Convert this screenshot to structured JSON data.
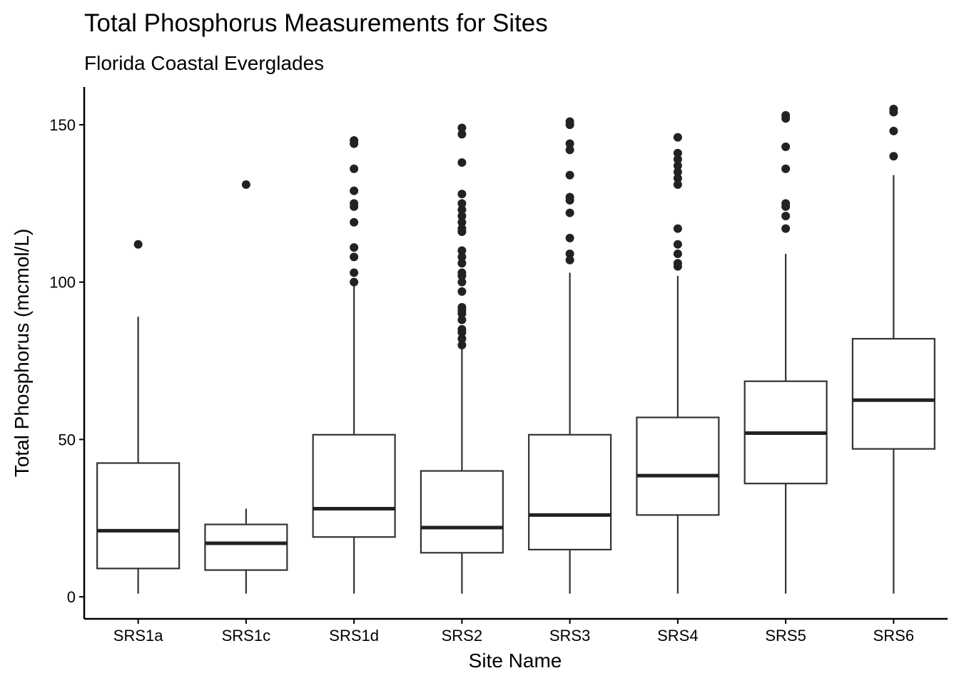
{
  "chart_data": {
    "type": "boxplot",
    "title": "Total Phosphorus Measurements for Sites",
    "subtitle": "Florida Coastal Everglades",
    "xlabel": "Site Name",
    "ylabel": "Total Phosphorus (mcmol/L)",
    "ylim": [
      -7,
      162
    ],
    "yticks": [
      0,
      50,
      100,
      150
    ],
    "grid": false,
    "categories": [
      "SRS1a",
      "SRS1c",
      "SRS1d",
      "SRS2",
      "SRS3",
      "SRS4",
      "SRS5",
      "SRS6"
    ],
    "boxes": [
      {
        "site": "SRS1a",
        "whisker_low": 1,
        "q1": 9,
        "median": 21,
        "q3": 42.5,
        "whisker_high": 89,
        "outliers": [
          112
        ]
      },
      {
        "site": "SRS1c",
        "whisker_low": 1,
        "q1": 8.5,
        "median": 17,
        "q3": 23,
        "whisker_high": 28,
        "outliers": [
          131
        ]
      },
      {
        "site": "SRS1d",
        "whisker_low": 1,
        "q1": 19,
        "median": 28,
        "q3": 51.5,
        "whisker_high": 99,
        "outliers": [
          100,
          103,
          108,
          111,
          119,
          124,
          125,
          129,
          136,
          144,
          145
        ]
      },
      {
        "site": "SRS2",
        "whisker_low": 1,
        "q1": 14,
        "median": 22,
        "q3": 40,
        "whisker_high": 79,
        "outliers": [
          80,
          82,
          84,
          85,
          88,
          90,
          91,
          92,
          97,
          100,
          102,
          103,
          106,
          108,
          110,
          116,
          117,
          119,
          121,
          123,
          125,
          128,
          138,
          147,
          149
        ]
      },
      {
        "site": "SRS3",
        "whisker_low": 1,
        "q1": 15,
        "median": 26,
        "q3": 51.5,
        "whisker_high": 103,
        "outliers": [
          107,
          109,
          114,
          122,
          126,
          127,
          134,
          142,
          144,
          150,
          151
        ]
      },
      {
        "site": "SRS4",
        "whisker_low": 1,
        "q1": 26,
        "median": 38.5,
        "q3": 57,
        "whisker_high": 102,
        "outliers": [
          105,
          106,
          109,
          112,
          117,
          131,
          133,
          135,
          137,
          139,
          141,
          146
        ]
      },
      {
        "site": "SRS5",
        "whisker_low": 1,
        "q1": 36,
        "median": 52,
        "q3": 68.5,
        "whisker_high": 109,
        "outliers": [
          117,
          121,
          124,
          125,
          136,
          143,
          152,
          153
        ]
      },
      {
        "site": "SRS6",
        "whisker_low": 1,
        "q1": 47,
        "median": 62.5,
        "q3": 82,
        "whisker_high": 134,
        "outliers": [
          140,
          148,
          154,
          155
        ]
      }
    ],
    "colors": {
      "box_stroke": "#333333",
      "box_fill": "#ffffff",
      "median": "#222222",
      "outlier": "#222222",
      "axis": "#000000"
    }
  }
}
